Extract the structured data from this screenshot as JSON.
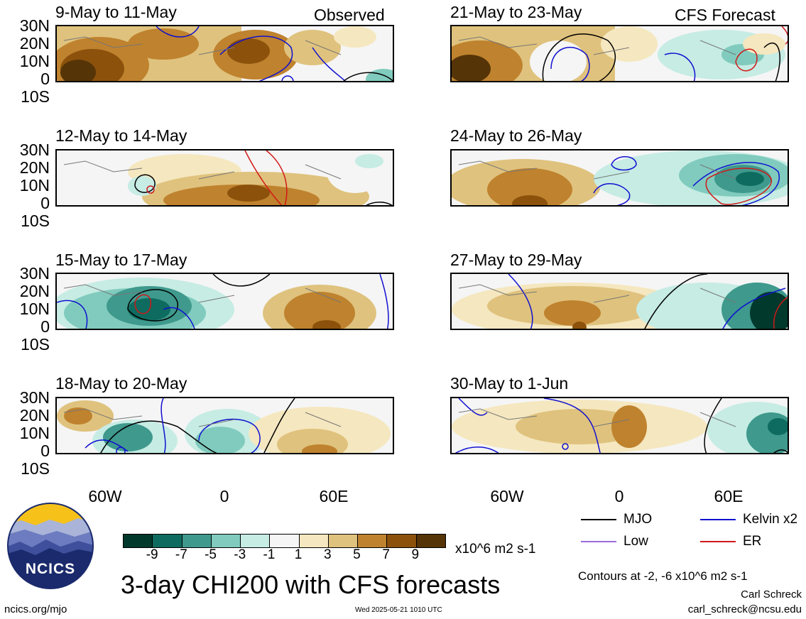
{
  "panels": [
    {
      "label": "9-May to 11-May",
      "tag": "Observed"
    },
    {
      "label": "12-May to 14-May",
      "tag": ""
    },
    {
      "label": "15-May to 17-May",
      "tag": ""
    },
    {
      "label": "18-May to 20-May",
      "tag": ""
    },
    {
      "label": "21-May to 23-May",
      "tag": "CFS Forecast"
    },
    {
      "label": "24-May to 26-May",
      "tag": ""
    },
    {
      "label": "27-May to 29-May",
      "tag": ""
    },
    {
      "label": "30-May to 1-Jun",
      "tag": ""
    }
  ],
  "lat_labels": [
    "30N",
    "20N",
    "10N",
    "0",
    "10S"
  ],
  "lon_labels": [
    "60W",
    "0",
    "60E"
  ],
  "colorbar": {
    "ticks": [
      "-9",
      "-7",
      "-5",
      "-3",
      "-1",
      "1",
      "3",
      "5",
      "7",
      "9"
    ],
    "colors": [
      "#01392c",
      "#0e6b5f",
      "#3f998d",
      "#80cbbd",
      "#c6ece4",
      "#f5f5f5",
      "#f5e7bf",
      "#dfc27d",
      "#bf822e",
      "#8c520c",
      "#553407"
    ],
    "units": "x10^6 m2 s-1"
  },
  "legend": {
    "mjo": {
      "label": "MJO",
      "color": "#000000"
    },
    "kelvin": {
      "label": "Kelvin x2",
      "color": "#1010d0"
    },
    "low": {
      "label": "Low",
      "color": "#9b6bdc"
    },
    "er": {
      "label": "ER",
      "color": "#d01818"
    }
  },
  "contours_note": "Contours at -2, -6 x10^6 m2 s-1",
  "title": "3-day CHI200 with CFS forecasts",
  "logo_text": "NCICS",
  "website": "ncics.org/mjo",
  "timestamp": "Wed 2025-05-21 1010 UTC",
  "author": "Carl Schreck",
  "email": "carl_schreck@ncsu.edu"
}
